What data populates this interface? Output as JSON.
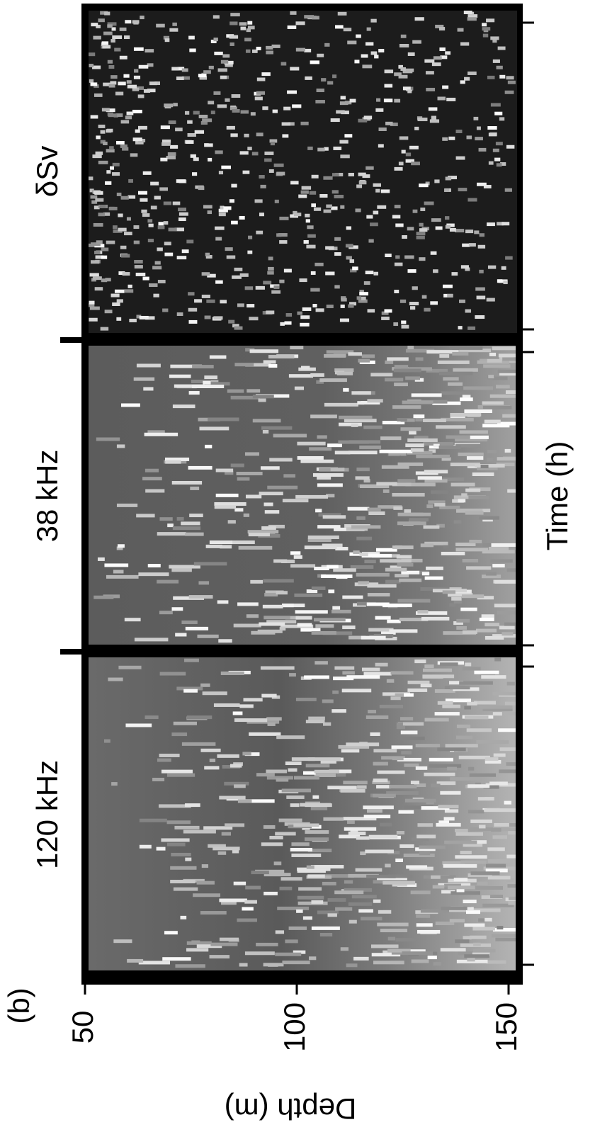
{
  "chart_data": {
    "type": "echogram",
    "panel_label": "(b)",
    "xlabel": "Depth (m)",
    "ylabel": "Time (h)",
    "panels": [
      {
        "title": "δSv"
      },
      {
        "title": "38 kHz"
      },
      {
        "title": "120 kHz"
      }
    ],
    "xlim": [
      50,
      150
    ],
    "xticks": [
      50,
      100,
      150
    ]
  }
}
